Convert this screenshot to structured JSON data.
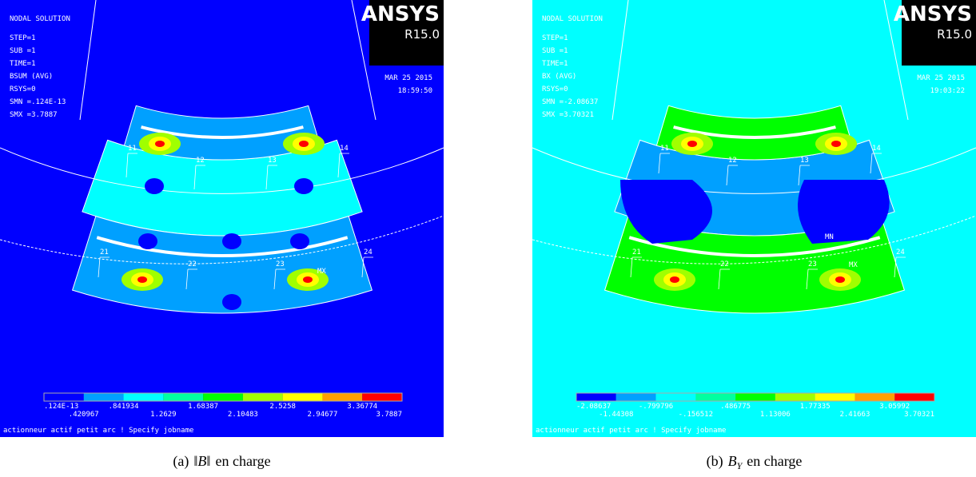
{
  "legend_colors": [
    "#0000ff",
    "#00a0ff",
    "#00ffff",
    "#00ffa0",
    "#00ff00",
    "#a0ff00",
    "#ffff00",
    "#ffa000",
    "#ff0000"
  ],
  "panels": [
    {
      "background": "#0000ff",
      "header": [
        "NODAL SOLUTION",
        "STEP=1",
        "SUB =1",
        "TIME=1",
        "BSUM     (AVG)",
        "RSYS=0",
        "SMN =.124E-13",
        "SMX =3.7887"
      ],
      "logo": "ANSYS",
      "version": "R15.0",
      "date": "MAR 25 2015",
      "time": "18:59:50",
      "legend": {
        "top": [
          ".124E-13",
          ".841934",
          "1.68387",
          "2.5258",
          "3.36774"
        ],
        "bottom": [
          ".420967",
          "1.2629",
          "2.10483",
          "2.94677",
          "3.7887"
        ]
      },
      "footer": "actionneur actif petit arc    ! Specify  jobname",
      "nodes": [
        "11",
        "12",
        "13",
        "14",
        "21",
        "22",
        "23",
        "24"
      ],
      "markers": [
        "MX"
      ],
      "caption": {
        "label": "(a)",
        "symbol": "‖B‖",
        "text": "en charge"
      }
    },
    {
      "background": "#00ffff",
      "header": [
        "NODAL SOLUTION",
        "STEP=1",
        "SUB =1",
        "TIME=1",
        "BX      (AVG)",
        "RSYS=0",
        "SMN =-2.08637",
        "SMX =3.70321"
      ],
      "logo": "ANSYS",
      "version": "R15.0",
      "date": "MAR 25 2015",
      "time": "19:03:22",
      "legend": {
        "top": [
          "-2.08637",
          "-.799796",
          ".486775",
          "1.77335",
          "3.05992"
        ],
        "bottom": [
          "-1.44308",
          "-.156512",
          "1.13006",
          "2.41663",
          "3.70321"
        ]
      },
      "footer": "actionneur actif petit arc    ! Specify  jobname",
      "nodes": [
        "11",
        "12",
        "13",
        "14",
        "21",
        "22",
        "23",
        "24"
      ],
      "markers": [
        "MN",
        "MX"
      ],
      "caption": {
        "label": "(b)",
        "symbol": "B",
        "sub": "Y",
        "text": "en charge"
      }
    }
  ]
}
